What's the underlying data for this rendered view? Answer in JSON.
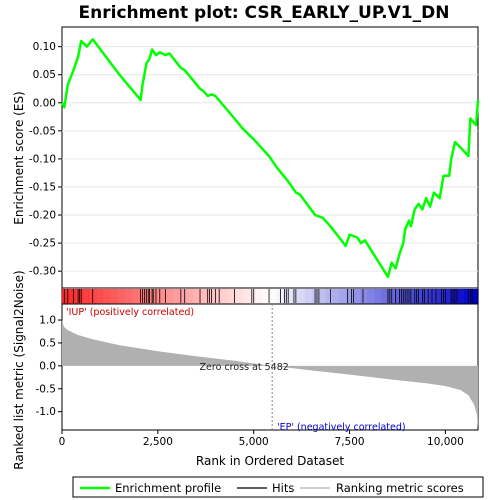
{
  "title": "Enrichment plot: CSR_EARLY_UP.V1_DN",
  "chart_data": {
    "type": "line",
    "x_max": 10850,
    "xlabel": "Rank in Ordered Dataset",
    "x_ticks": [
      0,
      2500,
      5000,
      7500,
      10000
    ],
    "x_tick_labels": [
      "0",
      "2,500",
      "5,000",
      "7,500",
      "10,000"
    ],
    "es_panel": {
      "ylabel": "Enrichment score (ES)",
      "ylim": [
        -0.33,
        0.135
      ],
      "y_ticks": [
        0.1,
        0.05,
        0.0,
        -0.05,
        -0.1,
        -0.15,
        -0.2,
        -0.25,
        -0.3
      ],
      "y_tick_labels": [
        "0.10",
        "0.05",
        "0.00",
        "-0.05",
        "-0.10",
        "-0.15",
        "-0.20",
        "-0.25",
        "-0.30"
      ],
      "series_name": "Enrichment profile",
      "color": "#00ff00",
      "points": [
        [
          0,
          0.0
        ],
        [
          60,
          -0.008
        ],
        [
          150,
          0.032
        ],
        [
          300,
          0.058
        ],
        [
          420,
          0.082
        ],
        [
          500,
          0.11
        ],
        [
          650,
          0.1
        ],
        [
          800,
          0.113
        ],
        [
          1500,
          0.05
        ],
        [
          2050,
          0.005
        ],
        [
          2100,
          0.032
        ],
        [
          2150,
          0.05
        ],
        [
          2200,
          0.07
        ],
        [
          2280,
          0.078
        ],
        [
          2350,
          0.095
        ],
        [
          2450,
          0.085
        ],
        [
          2550,
          0.09
        ],
        [
          2700,
          0.085
        ],
        [
          2800,
          0.088
        ],
        [
          3100,
          0.062
        ],
        [
          3200,
          0.058
        ],
        [
          3600,
          0.025
        ],
        [
          3700,
          0.02
        ],
        [
          3800,
          0.012
        ],
        [
          3900,
          0.015
        ],
        [
          4000,
          0.012
        ],
        [
          4500,
          -0.028
        ],
        [
          4700,
          -0.045
        ],
        [
          5000,
          -0.065
        ],
        [
          5400,
          -0.095
        ],
        [
          5600,
          -0.115
        ],
        [
          5900,
          -0.14
        ],
        [
          6100,
          -0.16
        ],
        [
          6200,
          -0.163
        ],
        [
          6600,
          -0.2
        ],
        [
          6800,
          -0.205
        ],
        [
          7000,
          -0.22
        ],
        [
          7400,
          -0.255
        ],
        [
          7500,
          -0.235
        ],
        [
          7700,
          -0.24
        ],
        [
          7800,
          -0.25
        ],
        [
          7900,
          -0.245
        ],
        [
          8500,
          -0.31
        ],
        [
          8600,
          -0.285
        ],
        [
          8700,
          -0.295
        ],
        [
          8800,
          -0.27
        ],
        [
          8900,
          -0.25
        ],
        [
          8950,
          -0.225
        ],
        [
          9050,
          -0.21
        ],
        [
          9100,
          -0.22
        ],
        [
          9200,
          -0.19
        ],
        [
          9300,
          -0.18
        ],
        [
          9400,
          -0.19
        ],
        [
          9500,
          -0.17
        ],
        [
          9600,
          -0.185
        ],
        [
          9700,
          -0.16
        ],
        [
          9850,
          -0.17
        ],
        [
          9950,
          -0.13
        ],
        [
          10100,
          -0.13
        ],
        [
          10150,
          -0.1
        ],
        [
          10250,
          -0.07
        ],
        [
          10400,
          -0.08
        ],
        [
          10600,
          -0.095
        ],
        [
          10650,
          -0.028
        ],
        [
          10800,
          -0.04
        ],
        [
          10850,
          0.005
        ]
      ]
    },
    "hits": [
      60,
      150,
      300,
      420,
      460,
      500,
      800,
      2050,
      2100,
      2150,
      2200,
      2250,
      2280,
      2350,
      2380,
      2450,
      2550,
      2700,
      3100,
      3200,
      3600,
      3800,
      3850,
      3900,
      4000,
      4100,
      4500,
      4950,
      5000,
      5400,
      5700,
      5800,
      5850,
      5900,
      6050,
      6100,
      6600,
      6650,
      6700,
      7000,
      7450,
      7550,
      7600,
      7850,
      8500,
      8550,
      8600,
      8700,
      8800,
      8850,
      8900,
      8950,
      9000,
      9050,
      9100,
      9200,
      9250,
      9300,
      9400,
      9450,
      9550,
      9650,
      9750,
      9900,
      9950,
      10000,
      10150,
      10200,
      10250,
      10300,
      10600,
      10650,
      10700,
      10850
    ],
    "rank_metric_panel": {
      "ylabel": "Ranked list metric (Signal2Noise)",
      "ylim": [
        -1.4,
        1.35
      ],
      "y_ticks": [
        1.0,
        0.5,
        0.0,
        -0.5,
        -1.0
      ],
      "y_tick_labels": [
        "1.0",
        "0.5",
        "0.0",
        "-0.5",
        "-1.0"
      ],
      "points": [
        [
          0,
          1.0
        ],
        [
          50,
          0.85
        ],
        [
          150,
          0.78
        ],
        [
          400,
          0.68
        ],
        [
          800,
          0.58
        ],
        [
          1500,
          0.45
        ],
        [
          2500,
          0.32
        ],
        [
          3500,
          0.21
        ],
        [
          4500,
          0.11
        ],
        [
          5482,
          0.0
        ],
        [
          6500,
          -0.1
        ],
        [
          7500,
          -0.19
        ],
        [
          8500,
          -0.29
        ],
        [
          9500,
          -0.38
        ],
        [
          10000,
          -0.44
        ],
        [
          10400,
          -0.53
        ],
        [
          10600,
          -0.64
        ],
        [
          10750,
          -0.85
        ],
        [
          10820,
          -1.05
        ],
        [
          10850,
          -1.35
        ]
      ],
      "zero_cross": 5482,
      "zero_cross_label": "Zero cross at 5482",
      "pos_label": "'IUP' (positively correlated)",
      "neg_label": "'EP' (negatively correlated)",
      "fill_color": "#b0b0b0"
    },
    "legend": [
      {
        "label": "Enrichment profile",
        "color": "#00ff00"
      },
      {
        "label": "Hits",
        "color": "#000000"
      },
      {
        "label": "Ranking metric scores",
        "color": "#b0b0b0"
      }
    ],
    "legend_position": "bottom"
  }
}
